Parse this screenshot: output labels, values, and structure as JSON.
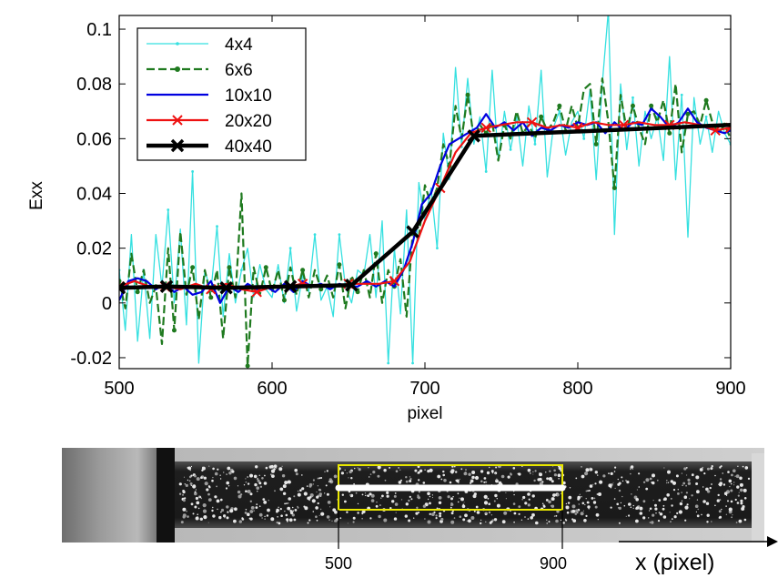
{
  "chart_data": [
    {
      "type": "line",
      "title": "",
      "xlabel": "pixel",
      "ylabel": "Exx",
      "xlim": [
        500,
        900
      ],
      "ylim": [
        -0.024,
        0.105
      ],
      "x_ticks": [
        500,
        600,
        700,
        800,
        900
      ],
      "x_tick_labels": [
        "500",
        "600",
        "700",
        "800",
        "900"
      ],
      "y_ticks": [
        -0.02,
        0,
        0.02,
        0.04,
        0.06,
        0.08,
        0.1
      ],
      "y_tick_labels": [
        "-0.02",
        "0",
        "0.02",
        "0.04",
        "0.06",
        "0.08",
        "0.1"
      ],
      "grid": false,
      "legend_position": "top-left",
      "series": [
        {
          "name": "4x4",
          "color": "#35e0e0",
          "line_style": "solid",
          "marker": "point",
          "x": [
            500,
            504,
            508,
            512,
            516,
            520,
            524,
            528,
            532,
            536,
            540,
            544,
            548,
            552,
            556,
            560,
            564,
            568,
            572,
            576,
            580,
            584,
            588,
            592,
            596,
            600,
            604,
            608,
            612,
            616,
            620,
            624,
            628,
            632,
            636,
            640,
            644,
            648,
            652,
            656,
            660,
            664,
            668,
            672,
            676,
            680,
            684,
            688,
            692,
            696,
            700,
            704,
            708,
            712,
            716,
            720,
            724,
            728,
            732,
            736,
            740,
            744,
            748,
            752,
            756,
            760,
            764,
            768,
            772,
            776,
            780,
            784,
            788,
            792,
            796,
            800,
            804,
            808,
            812,
            816,
            820,
            824,
            828,
            832,
            836,
            840,
            844,
            848,
            852,
            856,
            860,
            864,
            868,
            872,
            876,
            880,
            884,
            888,
            892,
            896,
            900
          ],
          "values": [
            0.012,
            -0.01,
            0.025,
            -0.014,
            0.012,
            -0.013,
            0.025,
            0.006,
            0.034,
            0.0,
            0.027,
            -0.008,
            0.048,
            -0.022,
            0.012,
            0.004,
            0.028,
            -0.005,
            0.018,
            0.0,
            0.012,
            0.02,
            0.002,
            0.014,
            0.005,
            0.002,
            0.014,
            0.0,
            0.02,
            -0.003,
            0.01,
            0.004,
            0.025,
            0.001,
            0.006,
            -0.005,
            0.025,
            0.006,
            0.0,
            0.012,
            0.01,
            0.025,
            0.002,
            0.03,
            -0.022,
            0.02,
            -0.004,
            0.034,
            -0.022,
            0.044,
            0.03,
            0.042,
            0.02,
            0.062,
            0.045,
            0.086,
            0.057,
            0.082,
            0.058,
            0.068,
            0.048,
            0.085,
            0.052,
            0.07,
            0.056,
            0.068,
            0.05,
            0.072,
            0.058,
            0.085,
            0.046,
            0.064,
            0.07,
            0.054,
            0.066,
            0.07,
            0.06,
            0.078,
            0.045,
            0.08,
            0.107,
            0.025,
            0.08,
            0.056,
            0.075,
            0.05,
            0.07,
            0.06,
            0.068,
            0.052,
            0.09,
            0.045,
            0.076,
            0.024,
            0.075,
            0.058,
            0.068,
            0.055,
            0.07,
            0.062,
            0.058
          ]
        },
        {
          "name": "6x6",
          "color": "#1f7a1f",
          "line_style": "dashed",
          "marker": "dot",
          "x": [
            500,
            504,
            508,
            512,
            516,
            520,
            524,
            528,
            532,
            536,
            540,
            544,
            548,
            552,
            556,
            560,
            564,
            568,
            572,
            576,
            580,
            584,
            588,
            592,
            596,
            600,
            604,
            608,
            612,
            616,
            620,
            624,
            628,
            632,
            636,
            640,
            644,
            648,
            652,
            656,
            660,
            664,
            668,
            672,
            676,
            680,
            684,
            688,
            692,
            696,
            700,
            704,
            708,
            712,
            716,
            720,
            724,
            728,
            732,
            736,
            740,
            744,
            748,
            752,
            756,
            760,
            764,
            768,
            772,
            776,
            780,
            784,
            788,
            792,
            796,
            800,
            804,
            808,
            812,
            816,
            820,
            824,
            828,
            832,
            836,
            840,
            844,
            848,
            852,
            856,
            860,
            864,
            868,
            872,
            876,
            880,
            884,
            888,
            892,
            896,
            900
          ],
          "values": [
            0.008,
            -0.002,
            0.018,
            0.004,
            0.012,
            0.0,
            0.006,
            -0.015,
            0.02,
            -0.01,
            0.026,
            0.003,
            0.013,
            -0.006,
            0.012,
            0.002,
            0.012,
            -0.013,
            0.013,
            0.002,
            0.04,
            -0.023,
            0.013,
            0.003,
            0.013,
            0.004,
            0.012,
            0.001,
            0.013,
            0.003,
            0.012,
            0.002,
            0.012,
            0.005,
            0.01,
            0.002,
            0.014,
            -0.002,
            0.01,
            0.004,
            0.012,
            0.002,
            0.018,
            0.0,
            0.012,
            0.006,
            0.016,
            -0.005,
            0.026,
            0.024,
            0.043,
            0.036,
            0.042,
            0.058,
            0.05,
            0.072,
            0.06,
            0.076,
            0.06,
            0.065,
            0.062,
            0.066,
            0.052,
            0.065,
            0.06,
            0.07,
            0.062,
            0.065,
            0.06,
            0.068,
            0.063,
            0.066,
            0.072,
            0.063,
            0.072,
            0.064,
            0.078,
            0.08,
            0.058,
            0.082,
            0.066,
            0.042,
            0.076,
            0.063,
            0.072,
            0.064,
            0.058,
            0.072,
            0.066,
            0.074,
            0.062,
            0.08,
            0.055,
            0.069,
            0.07,
            0.065,
            0.074,
            0.066,
            0.062,
            0.065,
            0.06
          ]
        },
        {
          "name": "10x10",
          "color": "#0000e0",
          "line_style": "solid",
          "marker": "none",
          "x": [
            500,
            506,
            512,
            518,
            524,
            530,
            536,
            542,
            548,
            554,
            560,
            566,
            572,
            578,
            584,
            590,
            596,
            602,
            608,
            614,
            620,
            626,
            632,
            638,
            644,
            650,
            656,
            662,
            668,
            674,
            680,
            686,
            692,
            698,
            704,
            710,
            716,
            722,
            728,
            734,
            740,
            746,
            752,
            758,
            764,
            770,
            776,
            782,
            788,
            794,
            800,
            806,
            812,
            818,
            824,
            830,
            836,
            842,
            848,
            854,
            860,
            866,
            872,
            878,
            884,
            890,
            896,
            900
          ],
          "values": [
            0.001,
            0.008,
            0.009,
            0.008,
            0.005,
            0.007,
            0.004,
            0.006,
            0.003,
            0.004,
            0.008,
            0.0,
            0.006,
            0.004,
            0.007,
            0.005,
            0.006,
            0.004,
            0.007,
            0.004,
            0.008,
            0.006,
            0.007,
            0.005,
            0.007,
            0.006,
            0.006,
            0.008,
            0.006,
            0.008,
            0.006,
            0.012,
            0.022,
            0.036,
            0.04,
            0.05,
            0.058,
            0.06,
            0.062,
            0.064,
            0.069,
            0.064,
            0.066,
            0.063,
            0.066,
            0.061,
            0.064,
            0.063,
            0.065,
            0.064,
            0.066,
            0.065,
            0.066,
            0.062,
            0.066,
            0.063,
            0.066,
            0.065,
            0.071,
            0.068,
            0.064,
            0.066,
            0.071,
            0.066,
            0.064,
            0.063,
            0.062,
            0.063
          ]
        },
        {
          "name": "20x20",
          "color": "#ee1111",
          "line_style": "solid",
          "marker": "x",
          "x": [
            500,
            510,
            520,
            530,
            540,
            550,
            560,
            570,
            580,
            590,
            600,
            610,
            620,
            630,
            640,
            650,
            660,
            670,
            680,
            690,
            700,
            710,
            720,
            730,
            740,
            750,
            760,
            770,
            780,
            790,
            800,
            810,
            820,
            830,
            840,
            850,
            860,
            870,
            880,
            890,
            900
          ],
          "values": [
            0.006,
            0.008,
            0.006,
            0.006,
            0.005,
            0.007,
            0.005,
            0.007,
            0.005,
            0.004,
            0.006,
            0.006,
            0.007,
            0.006,
            0.006,
            0.007,
            0.007,
            0.007,
            0.008,
            0.015,
            0.03,
            0.042,
            0.055,
            0.062,
            0.064,
            0.065,
            0.066,
            0.066,
            0.064,
            0.065,
            0.064,
            0.066,
            0.065,
            0.065,
            0.066,
            0.065,
            0.065,
            0.066,
            0.065,
            0.063,
            0.064
          ]
        },
        {
          "name": "40x40",
          "color": "#000000",
          "line_style": "solid",
          "marker": "x-thick",
          "x": [
            500,
            531,
            570,
            612,
            652,
            692,
            732,
            900
          ],
          "values": [
            0.0055,
            0.006,
            0.0055,
            0.006,
            0.0065,
            0.026,
            0.061,
            0.065
          ]
        }
      ]
    },
    {
      "type": "image",
      "x_marks": [
        500,
        900
      ],
      "x_mark_labels": [
        "500",
        "900"
      ],
      "arrow_label": "x (pixel)",
      "box_color": "#e8e600"
    }
  ]
}
